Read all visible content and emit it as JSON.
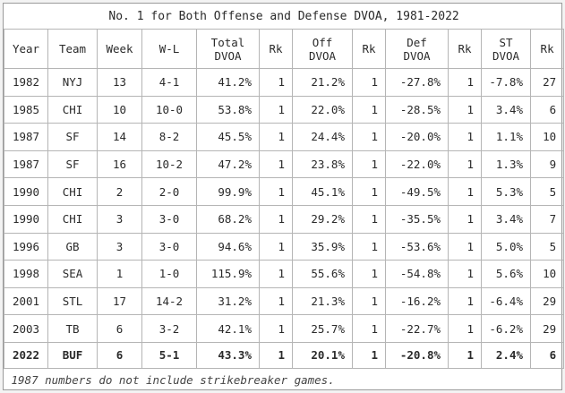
{
  "title": "No. 1 for Both Offense and Defense DVOA, 1981-2022",
  "headers": [
    {
      "l1": "Year",
      "l2": ""
    },
    {
      "l1": "Team",
      "l2": ""
    },
    {
      "l1": "Week",
      "l2": ""
    },
    {
      "l1": "W-L",
      "l2": ""
    },
    {
      "l1": "Total",
      "l2": "DVOA"
    },
    {
      "l1": "Rk",
      "l2": ""
    },
    {
      "l1": "Off",
      "l2": "DVOA"
    },
    {
      "l1": "Rk",
      "l2": ""
    },
    {
      "l1": "Def",
      "l2": "DVOA"
    },
    {
      "l1": "Rk",
      "l2": ""
    },
    {
      "l1": "ST",
      "l2": "DVOA"
    },
    {
      "l1": "Rk",
      "l2": ""
    }
  ],
  "rows": [
    [
      "1982",
      "NYJ",
      "13",
      "4-1",
      "41.2%",
      "1",
      "21.2%",
      "1",
      "-27.8%",
      "1",
      "-7.8%",
      "27"
    ],
    [
      "1985",
      "CHI",
      "10",
      "10-0",
      "53.8%",
      "1",
      "22.0%",
      "1",
      "-28.5%",
      "1",
      "3.4%",
      "6"
    ],
    [
      "1987",
      "SF",
      "14",
      "8-2",
      "45.5%",
      "1",
      "24.4%",
      "1",
      "-20.0%",
      "1",
      "1.1%",
      "10"
    ],
    [
      "1987",
      "SF",
      "16",
      "10-2",
      "47.2%",
      "1",
      "23.8%",
      "1",
      "-22.0%",
      "1",
      "1.3%",
      "9"
    ],
    [
      "1990",
      "CHI",
      "2",
      "2-0",
      "99.9%",
      "1",
      "45.1%",
      "1",
      "-49.5%",
      "1",
      "5.3%",
      "5"
    ],
    [
      "1990",
      "CHI",
      "3",
      "3-0",
      "68.2%",
      "1",
      "29.2%",
      "1",
      "-35.5%",
      "1",
      "3.4%",
      "7"
    ],
    [
      "1996",
      "GB",
      "3",
      "3-0",
      "94.6%",
      "1",
      "35.9%",
      "1",
      "-53.6%",
      "1",
      "5.0%",
      "5"
    ],
    [
      "1998",
      "SEA",
      "1",
      "1-0",
      "115.9%",
      "1",
      "55.6%",
      "1",
      "-54.8%",
      "1",
      "5.6%",
      "10"
    ],
    [
      "2001",
      "STL",
      "17",
      "14-2",
      "31.2%",
      "1",
      "21.3%",
      "1",
      "-16.2%",
      "1",
      "-6.4%",
      "29"
    ],
    [
      "2003",
      "TB",
      "6",
      "3-2",
      "42.1%",
      "1",
      "25.7%",
      "1",
      "-22.7%",
      "1",
      "-6.2%",
      "29"
    ],
    [
      "2022",
      "BUF",
      "6",
      "5-1",
      "43.3%",
      "1",
      "20.1%",
      "1",
      "-20.8%",
      "1",
      "2.4%",
      "6"
    ]
  ],
  "bold_row_index": 10,
  "footnote": "1987 numbers do not include strikebreaker games.",
  "colors": {
    "border": "#b5b5b5",
    "text": "#2a2a2a",
    "background": "#ffffff"
  }
}
